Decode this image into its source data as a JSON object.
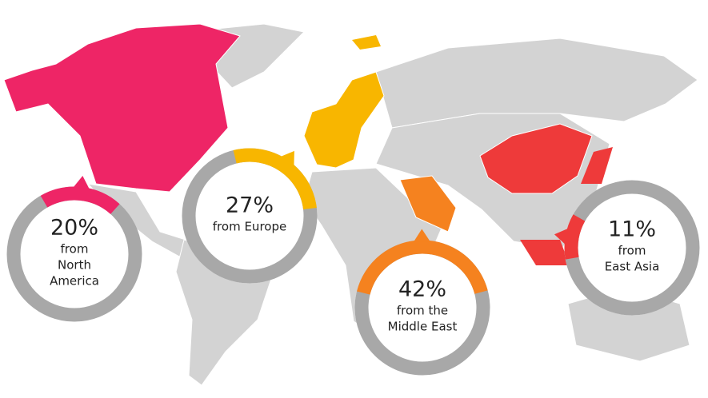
{
  "chart_data": [
    {
      "type": "donut",
      "values": [
        20
      ],
      "value_labels": [
        "20%"
      ],
      "label_lines": [
        "from",
        "North",
        "America"
      ],
      "color": "#ee2566"
    },
    {
      "type": "donut",
      "values": [
        27
      ],
      "value_labels": [
        "27%"
      ],
      "label_lines": [
        "from Europe"
      ],
      "color": "#f8b600"
    },
    {
      "type": "donut",
      "values": [
        42
      ],
      "value_labels": [
        "42%"
      ],
      "label_lines": [
        "from the",
        "Middle East"
      ],
      "color": "#f5821f"
    },
    {
      "type": "donut",
      "values": [
        11
      ],
      "value_labels": [
        "11%"
      ],
      "label_lines": [
        "from",
        "East Asia"
      ],
      "color": "#ee3a3a"
    }
  ]
}
